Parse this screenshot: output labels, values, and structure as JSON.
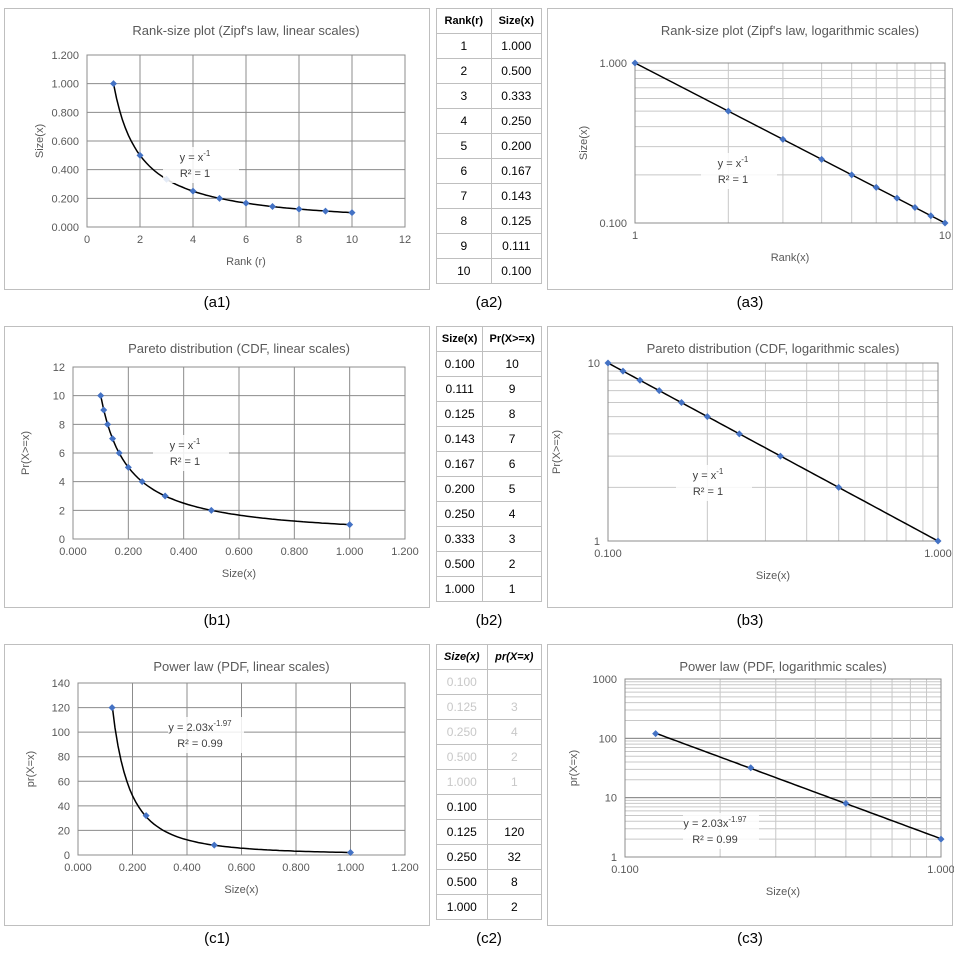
{
  "charts": {
    "a1": {
      "title": "Rank-size plot (Zipf's law, linear scales)",
      "xlabel": "Rank (r)",
      "ylabel": "Size(x)",
      "eq1": "y = x",
      "eq1_sup": "-1",
      "eq2": "R² = 1",
      "caption": "(a1)"
    },
    "a3": {
      "title": "Rank-size plot (Zipf's law, logarithmic scales)",
      "xlabel": "Rank(x)",
      "ylabel": "Size(x)",
      "eq1": "y = x",
      "eq1_sup": "-1",
      "eq2": "R² = 1",
      "caption": "(a3)"
    },
    "b1": {
      "title": "Pareto distribution (CDF, linear scales)",
      "xlabel": "Size(x)",
      "ylabel": "Pr(X>=x)",
      "eq1": "y = x",
      "eq1_sup": "-1",
      "eq2": "R² = 1",
      "caption": "(b1)"
    },
    "b3": {
      "title": "Pareto distribution (CDF, logarithmic scales)",
      "xlabel": "Size(x)",
      "ylabel": "Pr(X>=x)",
      "eq1": "y = x",
      "eq1_sup": "-1",
      "eq2": "R² = 1",
      "caption": "(b3)"
    },
    "c1": {
      "title": "Power law (PDF, linear scales)",
      "xlabel": "Size(x)",
      "ylabel": "pr(X=x)",
      "eq1": "y = 2.03x",
      "eq1_sup": "-1.97",
      "eq2": "R² = 0.99",
      "caption": "(c1)"
    },
    "c3": {
      "title": "Power law (PDF, logarithmic scales)",
      "xlabel": "Size(x)",
      "ylabel": "pr(X=x)",
      "eq1": "y = 2.03x",
      "eq1_sup": "-1.97",
      "eq2": "R² = 0.99",
      "caption": "(c3)"
    }
  },
  "tables": {
    "a2": {
      "caption": "(a2)",
      "headers": [
        "Rank(r)",
        "Size(x)"
      ],
      "rows": [
        [
          "1",
          "1.000"
        ],
        [
          "2",
          "0.500"
        ],
        [
          "3",
          "0.333"
        ],
        [
          "4",
          "0.250"
        ],
        [
          "5",
          "0.200"
        ],
        [
          "6",
          "0.167"
        ],
        [
          "7",
          "0.143"
        ],
        [
          "8",
          "0.125"
        ],
        [
          "9",
          "0.111"
        ],
        [
          "10",
          "0.100"
        ]
      ]
    },
    "b2": {
      "caption": "(b2)",
      "headers": [
        "Size(x)",
        "Pr(X>=x)"
      ],
      "rows": [
        [
          "0.100",
          "10"
        ],
        [
          "0.111",
          "9"
        ],
        [
          "0.125",
          "8"
        ],
        [
          "0.143",
          "7"
        ],
        [
          "0.167",
          "6"
        ],
        [
          "0.200",
          "5"
        ],
        [
          "0.250",
          "4"
        ],
        [
          "0.333",
          "3"
        ],
        [
          "0.500",
          "2"
        ],
        [
          "1.000",
          "1"
        ]
      ]
    },
    "c2": {
      "caption": "(c2)",
      "headers": [
        "Size(x)",
        "pr(X=x)"
      ],
      "faded_rows": [
        [
          "0.100",
          ""
        ],
        [
          "0.125",
          "3"
        ],
        [
          "0.250",
          "4"
        ],
        [
          "0.500",
          "2"
        ],
        [
          "1.000",
          "1"
        ]
      ],
      "rows": [
        [
          "0.100",
          ""
        ],
        [
          "0.125",
          "120"
        ],
        [
          "0.250",
          "32"
        ],
        [
          "0.500",
          "8"
        ],
        [
          "1.000",
          "2"
        ]
      ]
    }
  },
  "chart_data": [
    {
      "id": "a1",
      "type": "scatter",
      "scale": "linear",
      "x": [
        1,
        2,
        3,
        4,
        5,
        6,
        7,
        8,
        9,
        10
      ],
      "y": [
        1.0,
        0.5,
        0.333,
        0.25,
        0.2,
        0.167,
        0.143,
        0.125,
        0.111,
        0.1
      ],
      "trendline": {
        "a": 1,
        "b": -1
      },
      "xlim": [
        0,
        12
      ],
      "ylim": [
        0,
        1.2
      ],
      "xticks": [
        0,
        2,
        4,
        6,
        8,
        10,
        12
      ],
      "yticks": [
        0,
        0.2,
        0.4,
        0.6,
        0.8,
        1.0,
        1.2
      ],
      "xtick_labels": [
        "0",
        "2",
        "4",
        "6",
        "8",
        "10",
        "12"
      ],
      "ytick_labels": [
        "0.000",
        "0.200",
        "0.400",
        "0.600",
        "0.800",
        "1.000",
        "1.200"
      ],
      "grid": true,
      "marker_color": "#4472c4"
    },
    {
      "id": "a3",
      "type": "scatter",
      "scale": "log",
      "x": [
        1,
        2,
        3,
        4,
        5,
        6,
        7,
        8,
        9,
        10
      ],
      "y": [
        1.0,
        0.5,
        0.333,
        0.25,
        0.2,
        0.167,
        0.143,
        0.125,
        0.111,
        0.1
      ],
      "trendline": {
        "a": 1,
        "b": -1
      },
      "xlim": [
        1,
        10
      ],
      "ylim": [
        0.1,
        1
      ],
      "xtick_labels": [
        "1",
        "10"
      ],
      "ytick_labels": [
        "0.100",
        "1.000"
      ],
      "grid": true,
      "marker_color": "#4472c4"
    },
    {
      "id": "b1",
      "type": "scatter",
      "scale": "linear",
      "x": [
        0.1,
        0.111,
        0.125,
        0.143,
        0.167,
        0.2,
        0.25,
        0.333,
        0.5,
        1.0
      ],
      "y": [
        10,
        9,
        8,
        7,
        6,
        5,
        4,
        3,
        2,
        1
      ],
      "trendline": {
        "a": 1,
        "b": -1
      },
      "xlim": [
        0,
        1.2
      ],
      "ylim": [
        0,
        12
      ],
      "xticks": [
        0,
        0.2,
        0.4,
        0.6,
        0.8,
        1.0,
        1.2
      ],
      "yticks": [
        0,
        2,
        4,
        6,
        8,
        10,
        12
      ],
      "xtick_labels": [
        "0.000",
        "0.200",
        "0.400",
        "0.600",
        "0.800",
        "1.000",
        "1.200"
      ],
      "ytick_labels": [
        "0",
        "2",
        "4",
        "6",
        "8",
        "10",
        "12"
      ],
      "grid": true,
      "marker_color": "#4472c4"
    },
    {
      "id": "b3",
      "type": "scatter",
      "scale": "log",
      "x": [
        0.1,
        0.111,
        0.125,
        0.143,
        0.167,
        0.2,
        0.25,
        0.333,
        0.5,
        1.0
      ],
      "y": [
        10,
        9,
        8,
        7,
        6,
        5,
        4,
        3,
        2,
        1
      ],
      "trendline": {
        "a": 1,
        "b": -1
      },
      "xlim": [
        0.1,
        1
      ],
      "ylim": [
        1,
        10
      ],
      "xtick_labels": [
        "0.100",
        "1.000"
      ],
      "ytick_labels": [
        "1",
        "10"
      ],
      "grid": true,
      "marker_color": "#4472c4"
    },
    {
      "id": "c1",
      "type": "scatter",
      "scale": "linear",
      "x": [
        0.125,
        0.25,
        0.5,
        1.0
      ],
      "y": [
        120,
        32,
        8,
        2
      ],
      "trendline": {
        "a": 2.03,
        "b": -1.97
      },
      "xlim": [
        0,
        1.2
      ],
      "ylim": [
        0,
        140
      ],
      "xticks": [
        0,
        0.2,
        0.4,
        0.6,
        0.8,
        1.0,
        1.2
      ],
      "yticks": [
        0,
        20,
        40,
        60,
        80,
        100,
        120,
        140
      ],
      "xtick_labels": [
        "0.000",
        "0.200",
        "0.400",
        "0.600",
        "0.800",
        "1.000",
        "1.200"
      ],
      "ytick_labels": [
        "0",
        "20",
        "40",
        "60",
        "80",
        "100",
        "120",
        "140"
      ],
      "grid": true,
      "marker_color": "#4472c4"
    },
    {
      "id": "c3",
      "type": "scatter",
      "scale": "log",
      "x": [
        0.125,
        0.25,
        0.5,
        1.0
      ],
      "y": [
        120,
        32,
        8,
        2
      ],
      "trendline": {
        "a": 2.03,
        "b": -1.97
      },
      "xlim": [
        0.1,
        1
      ],
      "ylim": [
        1,
        1000
      ],
      "xtick_labels": [
        "0.100",
        "1.000"
      ],
      "ytick_labels": [
        "1",
        "10",
        "100",
        "1000"
      ],
      "grid": true,
      "marker_color": "#4472c4"
    }
  ]
}
